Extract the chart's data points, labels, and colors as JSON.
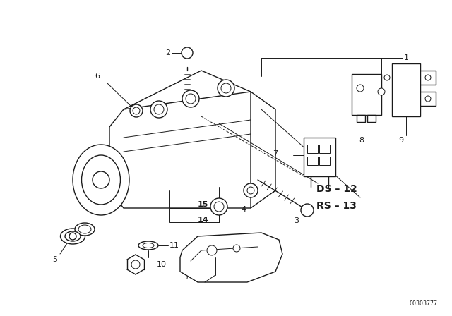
{
  "bg_color": "#ffffff",
  "line_color": "#1a1a1a",
  "fig_width": 6.4,
  "fig_height": 4.48,
  "dpi": 100,
  "watermark": "00303777",
  "label_fontsize": 8,
  "ds_rs_fontsize": 10
}
